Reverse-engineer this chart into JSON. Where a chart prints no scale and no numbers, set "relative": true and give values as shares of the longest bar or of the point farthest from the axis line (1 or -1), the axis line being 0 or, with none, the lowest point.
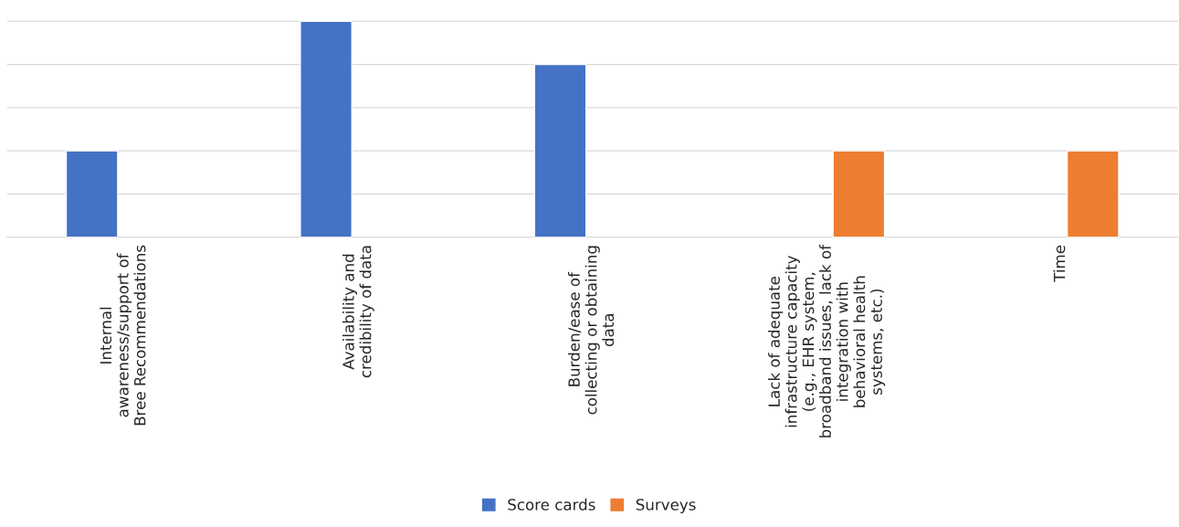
{
  "chart_data": {
    "type": "bar",
    "relative": true,
    "grid": "y",
    "legend": "bottom",
    "categories": [
      "Internal\nawareness/support of\nBree Recommendations",
      "Availability and\ncredibility of data",
      "Burden/ease of\ncollecting or obtaining\ndata",
      "Lack of adequate\ninfrastructure capacity\n(e.g., EHR system,\nbroadband issues, lack of\nintegration with\nbehavioral health\nsystems, etc.)",
      "Time"
    ],
    "series": [
      {
        "name": "Score cards",
        "color": "#4472c4",
        "values": [
          0.4,
          1,
          0.8,
          null,
          null
        ]
      },
      {
        "name": "Surveys",
        "color": "#ed7d31",
        "values": [
          null,
          null,
          null,
          0.4,
          0.4
        ]
      }
    ]
  }
}
